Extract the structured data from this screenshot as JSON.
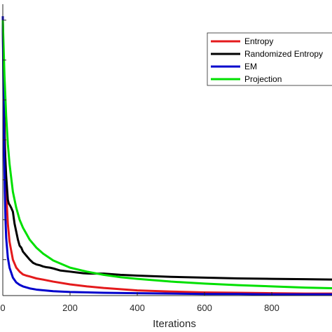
{
  "chart_data": {
    "type": "line",
    "xlabel": "Iterations",
    "ylabel": "",
    "title": "",
    "xlim": [
      0,
      1000
    ],
    "ylim": [
      0,
      7.3
    ],
    "x_ticks": [
      0,
      200,
      400,
      600,
      800
    ],
    "x_tick_labels": [
      "0",
      "200",
      "400",
      "600",
      "800"
    ],
    "y_ticks": [
      0.9,
      1.9,
      2.9,
      3.9,
      4.9,
      5.9,
      6.9
    ],
    "grid": false,
    "legend_position": "top-right",
    "series": [
      {
        "name": "Entropy",
        "color": "#e41a1c",
        "x": [
          0,
          3,
          6,
          10,
          15,
          20,
          30,
          40,
          50,
          60,
          70,
          80,
          100,
          120,
          150,
          200,
          250,
          300,
          400,
          500,
          600,
          700,
          800,
          900,
          1000
        ],
        "y": [
          6.9,
          5.2,
          3.9,
          2.6,
          1.8,
          1.35,
          0.9,
          0.7,
          0.6,
          0.53,
          0.5,
          0.48,
          0.43,
          0.4,
          0.35,
          0.28,
          0.23,
          0.19,
          0.13,
          0.1,
          0.08,
          0.07,
          0.06,
          0.05,
          0.05
        ]
      },
      {
        "name": "Randomized Entropy",
        "color": "#000000",
        "x": [
          0,
          3,
          6,
          10,
          15,
          18,
          20,
          25,
          30,
          35,
          40,
          45,
          50,
          55,
          60,
          70,
          80,
          90,
          100,
          110,
          120,
          130,
          140,
          150,
          170,
          200,
          220,
          240,
          260,
          300,
          350,
          400,
          500,
          600,
          700,
          800,
          900,
          1000
        ],
        "y": [
          6.9,
          4.8,
          3.7,
          3.0,
          2.4,
          2.3,
          2.28,
          2.2,
          2.1,
          1.8,
          1.6,
          1.4,
          1.25,
          1.2,
          1.1,
          1.0,
          0.9,
          0.82,
          0.78,
          0.76,
          0.73,
          0.71,
          0.7,
          0.68,
          0.63,
          0.6,
          0.58,
          0.56,
          0.55,
          0.55,
          0.52,
          0.5,
          0.47,
          0.45,
          0.43,
          0.42,
          0.41,
          0.4
        ]
      },
      {
        "name": "EM",
        "color": "#0000cc",
        "x": [
          0,
          2,
          4,
          6,
          8,
          10,
          15,
          20,
          30,
          40,
          50,
          60,
          80,
          100,
          150,
          200,
          300,
          400,
          500,
          600,
          700,
          800,
          900,
          1000
        ],
        "y": [
          7.0,
          5.0,
          3.6,
          2.6,
          1.9,
          1.45,
          0.95,
          0.7,
          0.45,
          0.33,
          0.27,
          0.23,
          0.18,
          0.15,
          0.11,
          0.09,
          0.07,
          0.06,
          0.05,
          0.04,
          0.04,
          0.03,
          0.03,
          0.03
        ]
      },
      {
        "name": "Projection",
        "color": "#00e000",
        "x": [
          0,
          5,
          10,
          15,
          20,
          30,
          40,
          50,
          60,
          70,
          80,
          100,
          120,
          150,
          200,
          250,
          300,
          350,
          400,
          500,
          600,
          700,
          800,
          900,
          1000
        ],
        "y": [
          6.9,
          5.5,
          4.5,
          3.8,
          3.3,
          2.6,
          2.2,
          1.9,
          1.7,
          1.55,
          1.4,
          1.2,
          1.05,
          0.88,
          0.7,
          0.6,
          0.52,
          0.46,
          0.42,
          0.35,
          0.3,
          0.26,
          0.23,
          0.2,
          0.18
        ]
      }
    ]
  }
}
